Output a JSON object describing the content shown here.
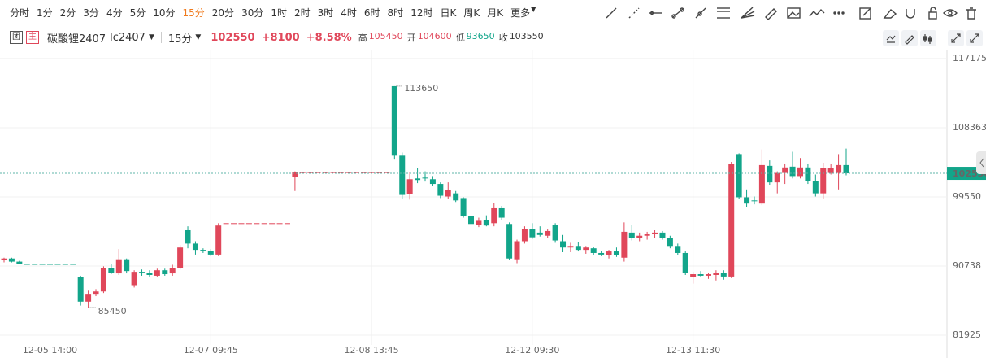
{
  "toolbar": {
    "periods": [
      "分时",
      "1分",
      "2分",
      "3分",
      "4分",
      "5分",
      "10分",
      "15分",
      "20分",
      "30分",
      "1时",
      "2时",
      "3时",
      "4时",
      "6时",
      "8时",
      "12时",
      "日K",
      "周K",
      "月K",
      "更多"
    ],
    "selected": 7
  },
  "header": {
    "badges": [
      "团",
      "主"
    ],
    "symbol": "碳酸锂2407",
    "code": "lc2407",
    "period": "15分",
    "price": 102550,
    "change": "+8100",
    "change_pct": "+8.58%",
    "stats": [
      {
        "label": "高",
        "value": 105450
      },
      {
        "label": "开",
        "value": 104600
      },
      {
        "label": "低",
        "value": 93650
      },
      {
        "label": "收",
        "value": 103550
      }
    ]
  },
  "chart_data": {
    "type": "candlestick",
    "up_color": "#e0475a",
    "down_color": "#12a58a",
    "grid": true,
    "ylim": [
      81100,
      118100
    ],
    "yticks": [
      81925,
      90738,
      99550,
      108363,
      117175
    ],
    "categories": [
      null,
      null,
      null,
      null,
      null,
      null,
      "12-05 14:00",
      null,
      null,
      null,
      null,
      null,
      null,
      null,
      null,
      null,
      null,
      null,
      null,
      null,
      null,
      null,
      null,
      null,
      null,
      null,
      null,
      "12-07 09:45",
      null,
      null,
      null,
      null,
      null,
      null,
      null,
      null,
      null,
      null,
      null,
      null,
      null,
      null,
      null,
      null,
      null,
      null,
      null,
      null,
      "12-08 13:45",
      null,
      null,
      null,
      null,
      null,
      null,
      null,
      null,
      null,
      null,
      null,
      null,
      null,
      null,
      null,
      null,
      null,
      null,
      null,
      null,
      "12-12 09:30",
      null,
      null,
      null,
      null,
      null,
      null,
      null,
      null,
      null,
      null,
      null,
      null,
      null,
      null,
      null,
      null,
      null,
      null,
      null,
      null,
      "12-13 11:30",
      null,
      null,
      null,
      null,
      null,
      null,
      null,
      null,
      null,
      null,
      null,
      null,
      null,
      null,
      null,
      null,
      null,
      null,
      null,
      null
    ],
    "open": [
      91500,
      91700,
      91300,
      91000,
      91000,
      91000,
      91000,
      91000,
      91000,
      91000,
      89300,
      86200,
      87200,
      87500,
      90500,
      89800,
      91600,
      88300,
      90000,
      89900,
      89500,
      90200,
      89800,
      90500,
      95300,
      93600,
      92800,
      92700,
      92200,
      96200,
      96200,
      96200,
      96200,
      96200,
      96200,
      96200,
      96200,
      96200,
      102100,
      102700,
      102700,
      102700,
      102700,
      102700,
      102700,
      102700,
      102700,
      102700,
      102700,
      102700,
      102700,
      113650,
      104800,
      99900,
      101900,
      102000,
      101800,
      101200,
      99600,
      100000,
      99400,
      97100,
      96000,
      96600,
      96200,
      98100,
      96100,
      91600,
      93900,
      95500,
      95000,
      94600,
      96000,
      93900,
      93100,
      93300,
      92800,
      93000,
      92400,
      92100,
      92600,
      91800,
      95000,
      94300,
      94600,
      94800,
      95000,
      94300,
      93300,
      92400,
      89300,
      89700,
      89500,
      89600,
      89900,
      89400,
      105000,
      99500,
      99100,
      98700,
      103500,
      101400,
      102600,
      103400,
      102200,
      103300,
      101600,
      100000,
      102600,
      102600,
      103600
    ],
    "high": [
      91800,
      91800,
      91400,
      91000,
      91000,
      91000,
      91000,
      91000,
      91000,
      91000,
      89500,
      87600,
      87800,
      90700,
      91000,
      92900,
      91700,
      90200,
      90300,
      90200,
      90400,
      90400,
      90900,
      93400,
      95800,
      93900,
      93000,
      92900,
      96200,
      96200,
      96200,
      96200,
      96200,
      96200,
      96200,
      96200,
      96200,
      96200,
      102800,
      102700,
      102700,
      102700,
      102700,
      102700,
      102700,
      102700,
      102700,
      102700,
      102700,
      102700,
      102700,
      113650,
      105200,
      102700,
      103200,
      102800,
      102200,
      101400,
      101400,
      100300,
      99500,
      97400,
      96900,
      97200,
      98800,
      98400,
      96300,
      94100,
      95800,
      96200,
      95800,
      95400,
      96200,
      94700,
      93700,
      93800,
      93300,
      93200,
      92700,
      92800,
      93100,
      96300,
      96000,
      95000,
      95100,
      95300,
      95200,
      94600,
      93600,
      92600,
      90000,
      90100,
      89900,
      90200,
      90200,
      104000,
      105100,
      100500,
      99600,
      105600,
      104200,
      102800,
      103800,
      105300,
      104500,
      103800,
      102400,
      103900,
      103800,
      105000,
      105700
    ],
    "low": [
      91200,
      91200,
      91000,
      91000,
      91000,
      91000,
      91000,
      91000,
      91000,
      91000,
      85700,
      85450,
      86900,
      87300,
      89700,
      89600,
      89800,
      88000,
      89500,
      89400,
      89400,
      89500,
      89500,
      90300,
      93000,
      92200,
      92400,
      92000,
      92000,
      96200,
      96200,
      96200,
      96200,
      96200,
      96200,
      96200,
      96200,
      96200,
      100300,
      102700,
      102700,
      102700,
      102700,
      102700,
      102700,
      102700,
      102700,
      102700,
      102700,
      102700,
      102700,
      104300,
      99300,
      99200,
      101300,
      101500,
      101000,
      99400,
      99300,
      98900,
      96900,
      95900,
      95700,
      95800,
      95800,
      96600,
      91500,
      91100,
      93600,
      94200,
      94500,
      94300,
      93700,
      92500,
      92500,
      92600,
      92300,
      92100,
      92000,
      91700,
      91900,
      91300,
      94000,
      93900,
      94100,
      94300,
      94100,
      93000,
      92100,
      89600,
      88500,
      89300,
      89100,
      88900,
      89000,
      89200,
      99300,
      98300,
      98600,
      98500,
      101100,
      100000,
      101200,
      101900,
      101900,
      101200,
      99600,
      99300,
      102400,
      100500,
      102300
    ],
    "close": [
      91700,
      91300,
      91050,
      91000,
      91000,
      91000,
      91000,
      91000,
      91000,
      91000,
      86200,
      87200,
      87500,
      90500,
      89900,
      91600,
      90100,
      90000,
      89900,
      89600,
      90200,
      89700,
      90500,
      93100,
      93600,
      92800,
      92700,
      92200,
      95900,
      96200,
      96200,
      96200,
      96200,
      96200,
      96200,
      96200,
      96200,
      96200,
      102700,
      102700,
      102700,
      102700,
      102700,
      102700,
      102700,
      102700,
      102700,
      102700,
      102700,
      102700,
      102700,
      104800,
      99800,
      101800,
      101700,
      101900,
      101200,
      99700,
      100400,
      99100,
      97100,
      96100,
      96500,
      95900,
      98100,
      96900,
      91700,
      93900,
      95500,
      94400,
      94700,
      95200,
      94000,
      93100,
      93300,
      92800,
      93100,
      92400,
      92200,
      92600,
      92100,
      95100,
      94300,
      94600,
      94800,
      95000,
      94300,
      93300,
      92400,
      89900,
      89700,
      89500,
      89700,
      89900,
      89400,
      103700,
      99500,
      98700,
      99000,
      103600,
      101400,
      102600,
      103300,
      102200,
      103300,
      101600,
      100000,
      103200,
      103200,
      103600,
      102550
    ]
  }
}
